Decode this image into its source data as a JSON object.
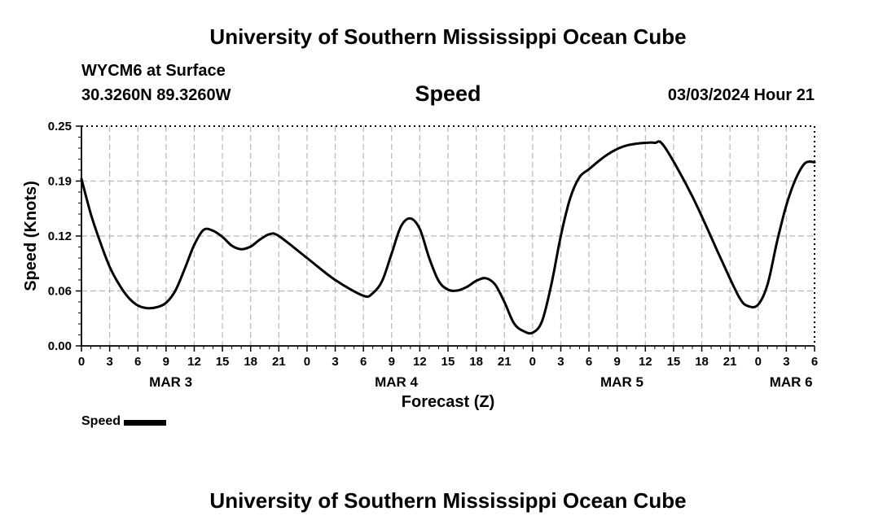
{
  "header": {
    "title": "University of Southern Mississippi Ocean Cube",
    "station": "WYCM6 at Surface",
    "coordinates": "30.3260N  89.3260W",
    "variable": "Speed",
    "datetime": "03/03/2024 Hour 21"
  },
  "footer": {
    "title": "University of Southern Mississippi Ocean Cube"
  },
  "legend": {
    "label": "Speed",
    "color": "#000000"
  },
  "chart_data": {
    "type": "line",
    "title": "Speed",
    "xlabel": "Forecast (Z)",
    "ylabel": "Speed (Knots)",
    "ylim": [
      0,
      0.25
    ],
    "xlim": [
      0,
      78
    ],
    "grid": true,
    "legend_position": "bottom-left",
    "y_ticks": [
      "0.00",
      "0.06",
      "0.12",
      "0.19",
      "0.25"
    ],
    "x_tick_labels": [
      "0",
      "3",
      "6",
      "9",
      "12",
      "15",
      "18",
      "21",
      "0",
      "3",
      "6",
      "9",
      "12",
      "15",
      "18",
      "21",
      "0",
      "3",
      "6",
      "9",
      "12",
      "15",
      "18",
      "21",
      "0",
      "3",
      "6"
    ],
    "day_labels": [
      {
        "label": "MAR 3",
        "hour": 9.5
      },
      {
        "label": "MAR 4",
        "hour": 33.5
      },
      {
        "label": "MAR 5",
        "hour": 57.5
      },
      {
        "label": "MAR 6",
        "hour": 75.5
      }
    ],
    "series": [
      {
        "name": "Speed",
        "color": "#000000",
        "x": [
          0,
          1,
          2,
          3,
          4,
          5,
          6,
          7,
          8,
          9,
          10,
          11,
          12,
          13,
          14,
          15,
          16,
          17,
          18,
          19,
          20,
          21,
          24,
          27,
          30,
          31,
          32,
          33,
          34,
          35,
          36,
          37,
          38,
          39,
          40,
          41,
          42,
          43,
          44,
          45,
          46,
          47,
          48,
          49,
          50,
          51,
          52,
          53,
          54,
          55,
          56,
          57,
          58,
          59,
          60,
          61,
          62,
          65,
          68,
          70,
          71,
          72,
          73,
          74,
          75,
          76,
          77,
          78
        ],
        "values": [
          0.19,
          0.15,
          0.118,
          0.09,
          0.07,
          0.055,
          0.046,
          0.043,
          0.044,
          0.049,
          0.063,
          0.088,
          0.115,
          0.132,
          0.131,
          0.124,
          0.114,
          0.11,
          0.113,
          0.121,
          0.127,
          0.125,
          0.1,
          0.075,
          0.057,
          0.06,
          0.074,
          0.105,
          0.136,
          0.145,
          0.133,
          0.1,
          0.074,
          0.064,
          0.063,
          0.067,
          0.074,
          0.077,
          0.07,
          0.05,
          0.026,
          0.017,
          0.015,
          0.028,
          0.07,
          0.125,
          0.168,
          0.192,
          0.201,
          0.21,
          0.218,
          0.224,
          0.228,
          0.23,
          0.231,
          0.231,
          0.227,
          0.17,
          0.1,
          0.055,
          0.045,
          0.047,
          0.07,
          0.118,
          0.16,
          0.19,
          0.208,
          0.209
        ]
      }
    ]
  }
}
